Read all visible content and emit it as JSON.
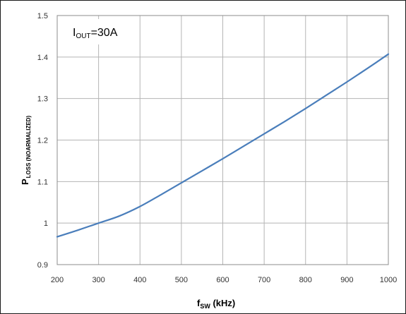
{
  "chart_data": {
    "type": "line",
    "title": "",
    "annotation": {
      "main": "I",
      "sub": "OUT",
      "suffix": "=30A"
    },
    "xlabel": {
      "main": "f",
      "sub": "SW",
      "suffix": " (kHz)"
    },
    "ylabel": {
      "main": "P",
      "sub": "LOSS (NOARMALIZED)"
    },
    "xlim": [
      200,
      1000
    ],
    "ylim": [
      0.9,
      1.5
    ],
    "x_ticks": [
      200,
      300,
      400,
      500,
      600,
      700,
      800,
      900,
      1000
    ],
    "y_ticks": [
      "0.9",
      "1",
      "1.1",
      "1.2",
      "1.3",
      "1.4",
      "1.5"
    ],
    "grid": true,
    "line_color": "#4a7ebb",
    "series": [
      {
        "x": [
          200,
          250,
          300,
          350,
          400,
          450,
          500,
          550,
          600,
          650,
          700,
          750,
          800,
          850,
          900,
          950,
          1000
        ],
        "values": [
          0.967,
          0.983,
          1.0,
          1.017,
          1.04,
          1.068,
          1.097,
          1.126,
          1.155,
          1.185,
          1.215,
          1.245,
          1.276,
          1.308,
          1.34,
          1.373,
          1.407
        ]
      }
    ]
  }
}
